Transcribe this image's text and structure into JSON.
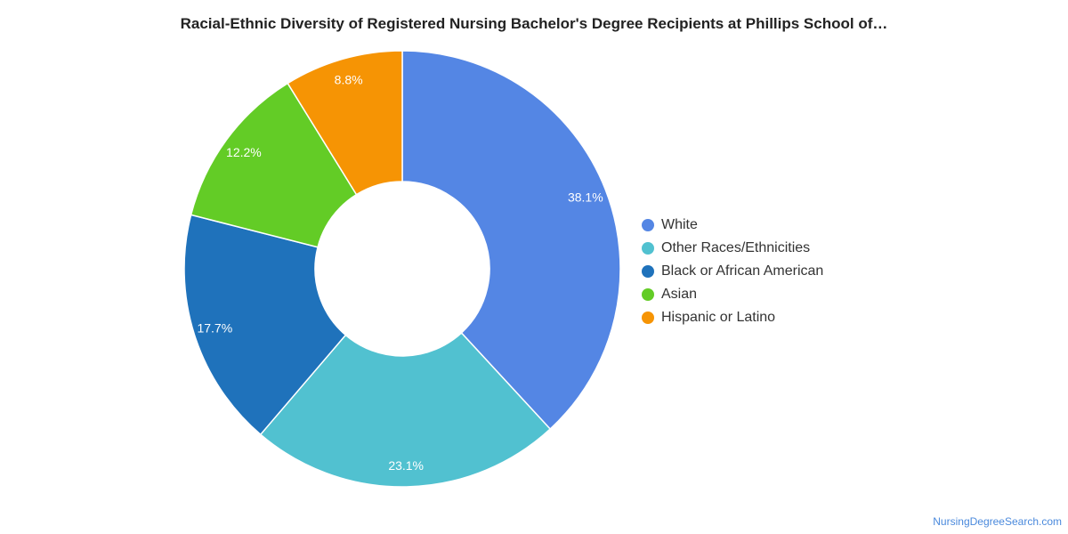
{
  "chart_data": {
    "type": "pie",
    "style": "donut",
    "title": "Racial-Ethnic Diversity of Registered Nursing Bachelor's Degree Recipients at Phillips School of…",
    "legend_position": "right",
    "slices": [
      {
        "label": "White",
        "value": 38.1,
        "display": "38.1%",
        "color": "#5486e4"
      },
      {
        "label": "Other Races/Ethnicities",
        "value": 23.1,
        "display": "23.1%",
        "color": "#51c1d0"
      },
      {
        "label": "Black or African American",
        "value": 17.7,
        "display": "17.7%",
        "color": "#1f72bb"
      },
      {
        "label": "Asian",
        "value": 12.2,
        "display": "12.2%",
        "color": "#63cc26"
      },
      {
        "label": "Hispanic or Latino",
        "value": 8.8,
        "display": "8.8%",
        "color": "#f69404"
      }
    ]
  },
  "footer": {
    "source": "NursingDegreeSearch.com"
  }
}
